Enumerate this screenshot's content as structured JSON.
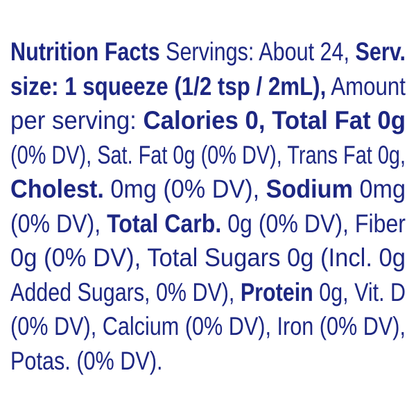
{
  "lines": [
    [
      {
        "text": "Nutrition Facts",
        "bold": true
      },
      {
        "text": " Servings: About 24, ",
        "bold": false
      },
      {
        "text": "Serv.",
        "bold": true
      }
    ],
    [
      {
        "text": "size: 1 squeeze (1/2 tsp / 2mL),",
        "bold": true
      },
      {
        "text": " Amount",
        "bold": false
      }
    ],
    [
      {
        "text": "per serving: ",
        "bold": false
      },
      {
        "text": "Calories 0, Total Fat 0g",
        "bold": true
      }
    ],
    [
      {
        "text": "(0% DV), Sat. Fat 0g (0% DV), Trans Fat 0g,",
        "bold": false
      }
    ],
    [
      {
        "text": "Cholest.",
        "bold": true
      },
      {
        "text": " 0mg (0% DV), ",
        "bold": false
      },
      {
        "text": "Sodium",
        "bold": true
      },
      {
        "text": " 0mg",
        "bold": false
      }
    ],
    [
      {
        "text": "(0% DV), ",
        "bold": false
      },
      {
        "text": "Total Carb.",
        "bold": true
      },
      {
        "text": " 0g (0% DV), Fiber",
        "bold": false
      }
    ],
    [
      {
        "text": "0g (0% DV), Total Sugars 0g (Incl. 0g",
        "bold": false
      }
    ],
    [
      {
        "text": "Added Sugars, 0% DV), ",
        "bold": false
      },
      {
        "text": "Protein",
        "bold": true
      },
      {
        "text": " 0g, Vit. D",
        "bold": false
      }
    ],
    [
      {
        "text": "(0% DV), Calcium (0% DV), Iron (0% DV),",
        "bold": false
      }
    ],
    [
      {
        "text": "Potas. (0% DV).",
        "bold": false
      }
    ]
  ]
}
